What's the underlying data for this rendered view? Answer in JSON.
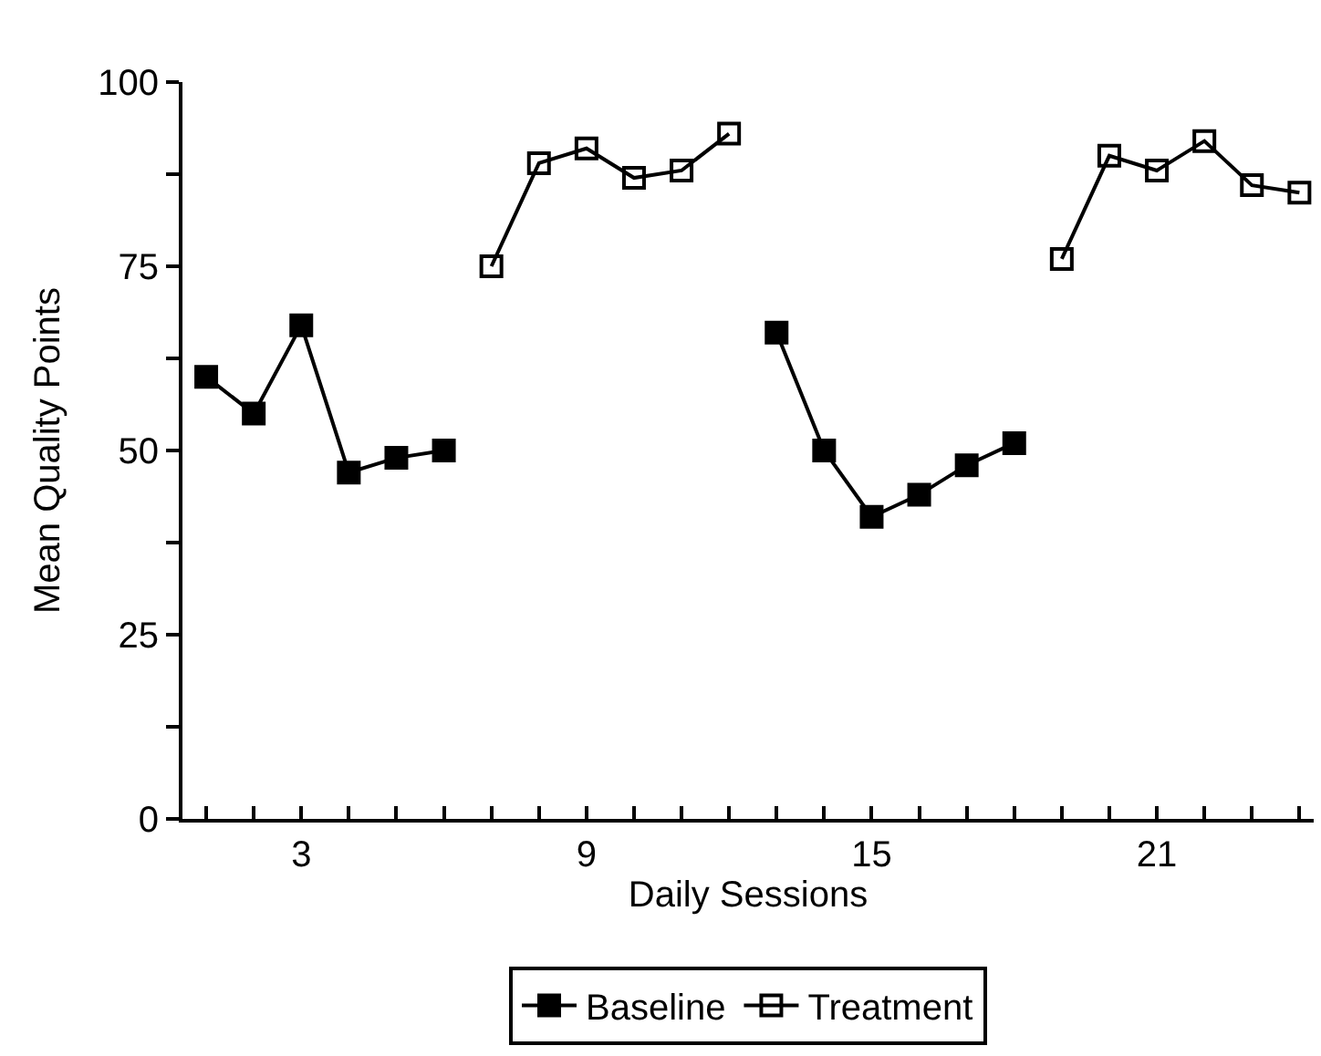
{
  "chart_data": {
    "type": "line",
    "xlabel": "Daily Sessions",
    "ylabel": "Mean Quality Points",
    "x": [
      1,
      2,
      3,
      4,
      5,
      6,
      7,
      8,
      9,
      10,
      11,
      12,
      13,
      14,
      15,
      16,
      17,
      18,
      19,
      20,
      21,
      22,
      23,
      24
    ],
    "series": [
      {
        "name": "Baseline",
        "color": "#000000",
        "marker": "square",
        "values": [
          60,
          55,
          67,
          47,
          49,
          50,
          null,
          null,
          null,
          null,
          null,
          null,
          66,
          50,
          41,
          44,
          48,
          51,
          null,
          null,
          null,
          null,
          null,
          null
        ]
      },
      {
        "name": "Treatment",
        "color": "#000000",
        "marker": "square-open",
        "values": [
          null,
          null,
          null,
          null,
          null,
          null,
          75,
          89,
          91,
          87,
          88,
          93,
          null,
          null,
          null,
          null,
          null,
          null,
          76,
          90,
          88,
          92,
          86,
          85
        ]
      }
    ],
    "xlim": [
      0.5,
      24.3
    ],
    "xticks": [
      {
        "value": 1,
        "label": null
      },
      {
        "value": 2,
        "label": null
      },
      3,
      {
        "value": 4,
        "label": null
      },
      {
        "value": 5,
        "label": null
      },
      {
        "value": 6,
        "label": null
      },
      {
        "value": 7,
        "label": null
      },
      {
        "value": 8,
        "label": null
      },
      9,
      {
        "value": 10,
        "label": null
      },
      {
        "value": 11,
        "label": null
      },
      {
        "value": 12,
        "label": null
      },
      {
        "value": 13,
        "label": null
      },
      {
        "value": 14,
        "label": null
      },
      15,
      {
        "value": 16,
        "label": null
      },
      {
        "value": 17,
        "label": null
      },
      {
        "value": 18,
        "label": null
      },
      {
        "value": 19,
        "label": null
      },
      {
        "value": 20,
        "label": null
      },
      21,
      {
        "value": 22,
        "label": null
      },
      {
        "value": 23,
        "label": null
      },
      {
        "value": 24,
        "label": null
      }
    ],
    "ylim": [
      0,
      100
    ],
    "yticks": [
      0,
      {
        "value": 12.5,
        "label": null
      },
      25,
      {
        "value": 37.5,
        "label": null
      },
      50,
      {
        "value": 62.5,
        "label": null
      },
      75,
      {
        "value": 87.5,
        "label": null
      },
      100
    ],
    "legend": "bottom",
    "line_style": "solid"
  }
}
